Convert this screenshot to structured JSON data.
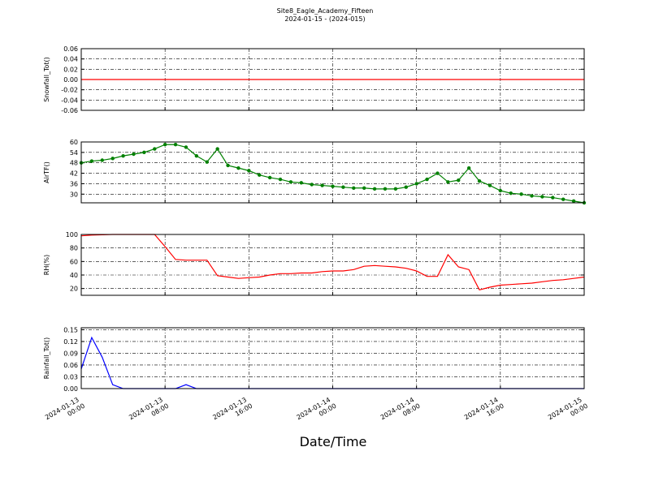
{
  "figure": {
    "title": "Site8_Eagle_Academy_Fifteen",
    "subtitle": "2024-01-15 - (2024-015)",
    "x_label": "Date/Time",
    "x": [
      "2024-01-13 00:00",
      "2024-01-13 01:00",
      "2024-01-13 02:00",
      "2024-01-13 03:00",
      "2024-01-13 04:00",
      "2024-01-13 05:00",
      "2024-01-13 06:00",
      "2024-01-13 07:00",
      "2024-01-13 08:00",
      "2024-01-13 09:00",
      "2024-01-13 10:00",
      "2024-01-13 11:00",
      "2024-01-13 12:00",
      "2024-01-13 13:00",
      "2024-01-13 14:00",
      "2024-01-13 15:00",
      "2024-01-13 16:00",
      "2024-01-13 17:00",
      "2024-01-13 18:00",
      "2024-01-13 19:00",
      "2024-01-13 20:00",
      "2024-01-13 21:00",
      "2024-01-13 22:00",
      "2024-01-13 23:00",
      "2024-01-14 00:00",
      "2024-01-14 01:00",
      "2024-01-14 02:00",
      "2024-01-14 03:00",
      "2024-01-14 04:00",
      "2024-01-14 05:00",
      "2024-01-14 06:00",
      "2024-01-14 07:00",
      "2024-01-14 08:00",
      "2024-01-14 09:00",
      "2024-01-14 10:00",
      "2024-01-14 11:00",
      "2024-01-14 12:00",
      "2024-01-14 13:00",
      "2024-01-14 14:00",
      "2024-01-14 15:00",
      "2024-01-14 16:00",
      "2024-01-14 17:00",
      "2024-01-14 18:00",
      "2024-01-14 19:00",
      "2024-01-14 20:00",
      "2024-01-14 21:00",
      "2024-01-14 22:00",
      "2024-01-14 23:00",
      "2024-01-15 00:00"
    ],
    "xlim": [
      "2024-01-13 00:00",
      "2024-01-15 00:00"
    ],
    "xticks": [
      "2024-01-13 00:00",
      "2024-01-13 08:00",
      "2024-01-13 16:00",
      "2024-01-14 00:00",
      "2024-01-14 08:00",
      "2024-01-14 16:00",
      "2024-01-15 00:00"
    ]
  },
  "chart_data": [
    {
      "type": "line",
      "y_label": "Snowfall_Tot()",
      "color": "#ff0000",
      "grid": true,
      "ylim": [
        -0.06,
        0.06
      ],
      "yticks": [
        -0.06,
        -0.04,
        -0.02,
        {
          "value": 0,
          "label": "0.00"
        },
        0.02,
        0.04,
        0.06
      ],
      "values": [
        0,
        0,
        0,
        0,
        0,
        0,
        0,
        0,
        0,
        0,
        0,
        0,
        0,
        0,
        0,
        0,
        0,
        0,
        0,
        0,
        0,
        0,
        0,
        0,
        0,
        0,
        0,
        0,
        0,
        0,
        0,
        0,
        0,
        0,
        0,
        0,
        0,
        0,
        0,
        0,
        0,
        0,
        0,
        0,
        0,
        0,
        0,
        0,
        0
      ]
    },
    {
      "type": "line",
      "y_label": "AirTF()",
      "color": "#008000",
      "marker": "o",
      "grid": true,
      "ylim": [
        25,
        60
      ],
      "yticks": [
        30,
        36,
        42,
        48,
        54,
        60
      ],
      "values": [
        48,
        49,
        49.5,
        50.5,
        52,
        53,
        54,
        56,
        58.5,
        58.5,
        57,
        52,
        48.5,
        56,
        46.5,
        45,
        43.5,
        41,
        39.5,
        38.5,
        37,
        36.5,
        35.5,
        35,
        34.5,
        34,
        33.5,
        33.5,
        33,
        33,
        33,
        34,
        36,
        38.5,
        42,
        37,
        38,
        45,
        37.5,
        35,
        32,
        30.5,
        30,
        29,
        28.5,
        28,
        27,
        26,
        25
      ]
    },
    {
      "type": "line",
      "y_label": "RH(%)",
      "color": "#ff0000",
      "grid": true,
      "ylim": [
        10,
        100
      ],
      "yticks": [
        20,
        40,
        60,
        80,
        100
      ],
      "values": [
        98,
        99,
        99.5,
        100,
        100,
        100,
        100,
        100,
        82,
        63,
        62,
        62,
        62,
        39,
        37,
        35,
        36,
        37,
        40,
        42,
        42,
        43,
        43,
        45,
        46,
        46,
        48,
        53,
        54,
        53,
        52,
        50,
        46,
        38,
        38,
        70,
        52,
        48,
        18,
        22,
        25,
        26,
        27,
        28,
        30,
        32,
        33,
        35,
        37
      ]
    },
    {
      "type": "line",
      "y_label": "Rainfall_Tot()",
      "color": "#0000ff",
      "grid": true,
      "ylim": [
        0,
        0.155
      ],
      "yticks": [
        {
          "value": 0,
          "label": "0.00"
        },
        0.03,
        0.06,
        0.09,
        0.12,
        0.15
      ],
      "values": [
        0.05,
        0.13,
        0.08,
        0.01,
        0,
        0,
        0,
        0,
        0,
        0,
        0.01,
        0,
        0,
        0,
        0,
        0,
        0,
        0,
        0,
        0,
        0,
        0,
        0,
        0,
        0,
        0,
        0,
        0,
        0,
        0,
        0,
        0,
        0,
        0,
        0,
        0,
        0,
        0,
        0,
        0,
        0,
        0,
        0,
        0,
        0,
        0,
        0,
        0,
        0
      ]
    }
  ]
}
